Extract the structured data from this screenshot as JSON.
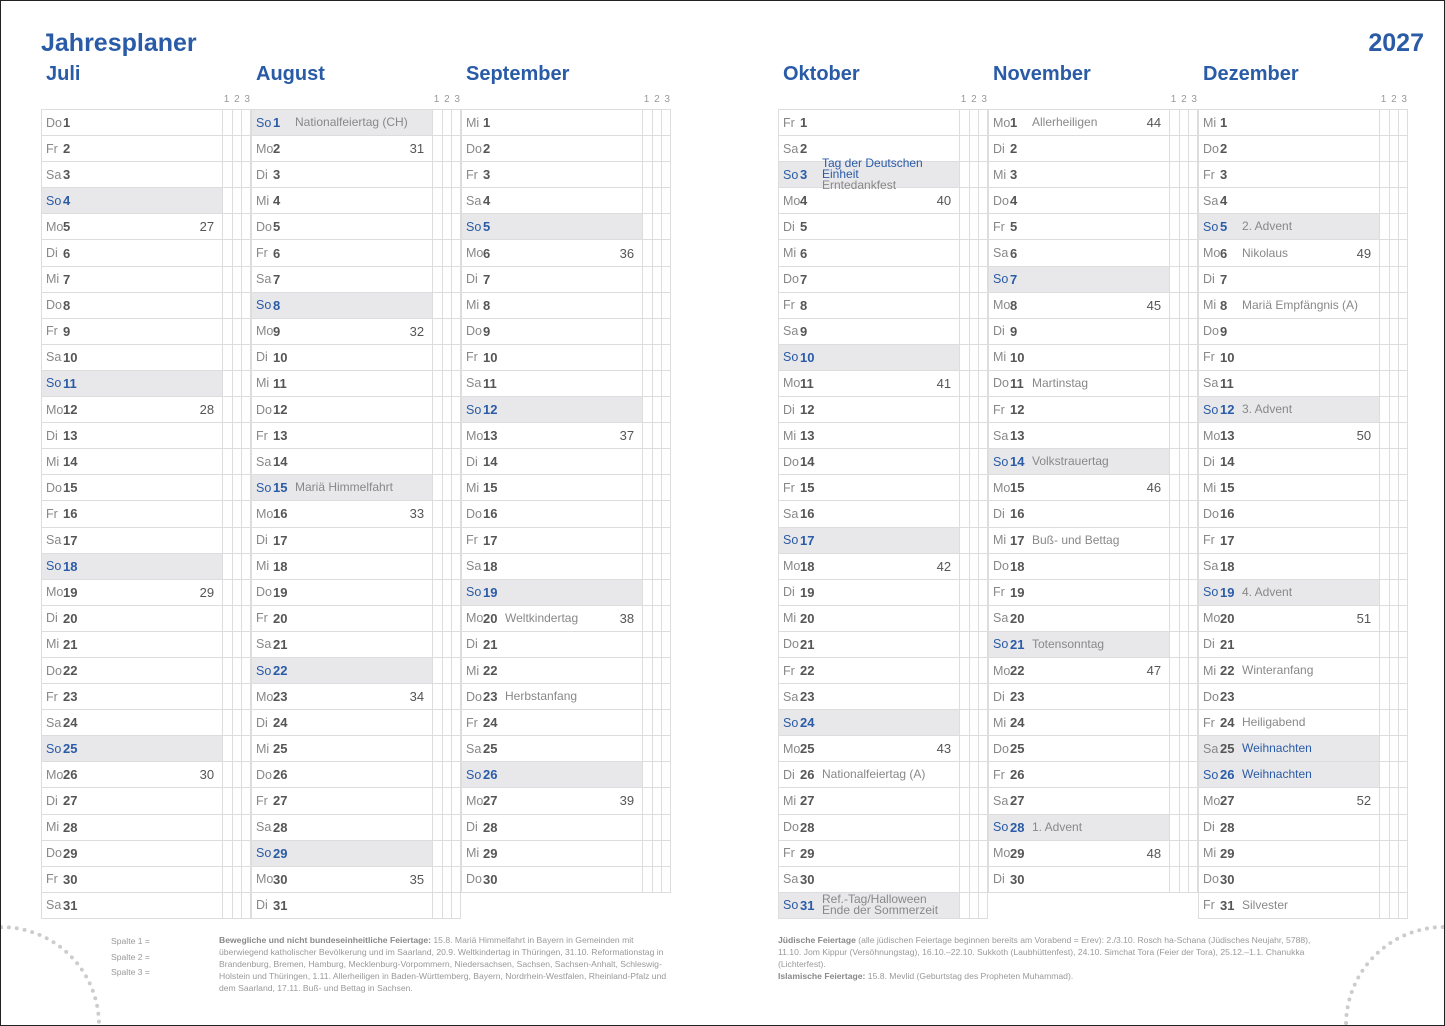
{
  "header": {
    "title": "Jahresplaner",
    "year": "2027",
    "subcols": "1 2 3"
  },
  "colors": {
    "accent": "#2a5ba6",
    "sunday_bg": "#e8e8eb"
  },
  "months": [
    {
      "name": "Juli",
      "rows": [
        [
          "Do",
          "1"
        ],
        [
          "Fr",
          "2"
        ],
        [
          "Sa",
          "3"
        ],
        [
          "So",
          "4"
        ],
        [
          "Mo",
          "5",
          "",
          "27"
        ],
        [
          "Di",
          "6"
        ],
        [
          "Mi",
          "7"
        ],
        [
          "Do",
          "8"
        ],
        [
          "Fr",
          "9"
        ],
        [
          "Sa",
          "10"
        ],
        [
          "So",
          "11"
        ],
        [
          "Mo",
          "12",
          "",
          "28"
        ],
        [
          "Di",
          "13"
        ],
        [
          "Mi",
          "14"
        ],
        [
          "Do",
          "15"
        ],
        [
          "Fr",
          "16"
        ],
        [
          "Sa",
          "17"
        ],
        [
          "So",
          "18"
        ],
        [
          "Mo",
          "19",
          "",
          "29"
        ],
        [
          "Di",
          "20"
        ],
        [
          "Mi",
          "21"
        ],
        [
          "Do",
          "22"
        ],
        [
          "Fr",
          "23"
        ],
        [
          "Sa",
          "24"
        ],
        [
          "So",
          "25"
        ],
        [
          "Mo",
          "26",
          "",
          "30"
        ],
        [
          "Di",
          "27"
        ],
        [
          "Mi",
          "28"
        ],
        [
          "Do",
          "29"
        ],
        [
          "Fr",
          "30"
        ],
        [
          "Sa",
          "31"
        ]
      ]
    },
    {
      "name": "August",
      "rows": [
        [
          "So",
          "1",
          "Nationalfeiertag (CH)"
        ],
        [
          "Mo",
          "2",
          "",
          "31"
        ],
        [
          "Di",
          "3"
        ],
        [
          "Mi",
          "4"
        ],
        [
          "Do",
          "5"
        ],
        [
          "Fr",
          "6"
        ],
        [
          "Sa",
          "7"
        ],
        [
          "So",
          "8"
        ],
        [
          "Mo",
          "9",
          "",
          "32"
        ],
        [
          "Di",
          "10"
        ],
        [
          "Mi",
          "11"
        ],
        [
          "Do",
          "12"
        ],
        [
          "Fr",
          "13"
        ],
        [
          "Sa",
          "14"
        ],
        [
          "So",
          "15",
          "Mariä Himmelfahrt"
        ],
        [
          "Mo",
          "16",
          "",
          "33"
        ],
        [
          "Di",
          "17"
        ],
        [
          "Mi",
          "18"
        ],
        [
          "Do",
          "19"
        ],
        [
          "Fr",
          "20"
        ],
        [
          "Sa",
          "21"
        ],
        [
          "So",
          "22"
        ],
        [
          "Mo",
          "23",
          "",
          "34"
        ],
        [
          "Di",
          "24"
        ],
        [
          "Mi",
          "25"
        ],
        [
          "Do",
          "26"
        ],
        [
          "Fr",
          "27"
        ],
        [
          "Sa",
          "28"
        ],
        [
          "So",
          "29"
        ],
        [
          "Mo",
          "30",
          "",
          "35"
        ],
        [
          "Di",
          "31"
        ]
      ]
    },
    {
      "name": "September",
      "rows": [
        [
          "Mi",
          "1"
        ],
        [
          "Do",
          "2"
        ],
        [
          "Fr",
          "3"
        ],
        [
          "Sa",
          "4"
        ],
        [
          "So",
          "5"
        ],
        [
          "Mo",
          "6",
          "",
          "36"
        ],
        [
          "Di",
          "7"
        ],
        [
          "Mi",
          "8"
        ],
        [
          "Do",
          "9"
        ],
        [
          "Fr",
          "10"
        ],
        [
          "Sa",
          "11"
        ],
        [
          "So",
          "12"
        ],
        [
          "Mo",
          "13",
          "",
          "37"
        ],
        [
          "Di",
          "14"
        ],
        [
          "Mi",
          "15"
        ],
        [
          "Do",
          "16"
        ],
        [
          "Fr",
          "17"
        ],
        [
          "Sa",
          "18"
        ],
        [
          "So",
          "19"
        ],
        [
          "Mo",
          "20",
          "Weltkindertag",
          "38"
        ],
        [
          "Di",
          "21"
        ],
        [
          "Mi",
          "22"
        ],
        [
          "Do",
          "23",
          "Herbstanfang"
        ],
        [
          "Fr",
          "24"
        ],
        [
          "Sa",
          "25"
        ],
        [
          "So",
          "26"
        ],
        [
          "Mo",
          "27",
          "",
          "39"
        ],
        [
          "Di",
          "28"
        ],
        [
          "Mi",
          "29"
        ],
        [
          "Do",
          "30"
        ]
      ]
    },
    {
      "name": "Oktober",
      "rows": [
        [
          "Fr",
          "1"
        ],
        [
          "Sa",
          "2"
        ],
        [
          "So",
          "3",
          "Tag der Deutschen Einheit",
          "",
          "Erntedankfest",
          true
        ],
        [
          "Mo",
          "4",
          "",
          "40"
        ],
        [
          "Di",
          "5"
        ],
        [
          "Mi",
          "6"
        ],
        [
          "Do",
          "7"
        ],
        [
          "Fr",
          "8"
        ],
        [
          "Sa",
          "9"
        ],
        [
          "So",
          "10"
        ],
        [
          "Mo",
          "11",
          "",
          "41"
        ],
        [
          "Di",
          "12"
        ],
        [
          "Mi",
          "13"
        ],
        [
          "Do",
          "14"
        ],
        [
          "Fr",
          "15"
        ],
        [
          "Sa",
          "16"
        ],
        [
          "So",
          "17"
        ],
        [
          "Mo",
          "18",
          "",
          "42"
        ],
        [
          "Di",
          "19"
        ],
        [
          "Mi",
          "20"
        ],
        [
          "Do",
          "21"
        ],
        [
          "Fr",
          "22"
        ],
        [
          "Sa",
          "23"
        ],
        [
          "So",
          "24"
        ],
        [
          "Mo",
          "25",
          "",
          "43"
        ],
        [
          "Di",
          "26",
          "Nationalfeiertag (A)"
        ],
        [
          "Mi",
          "27"
        ],
        [
          "Do",
          "28"
        ],
        [
          "Fr",
          "29"
        ],
        [
          "Sa",
          "30"
        ],
        [
          "So",
          "31",
          "Ref.-Tag/Halloween",
          "",
          "Ende der Sommerzeit"
        ]
      ]
    },
    {
      "name": "November",
      "rows": [
        [
          "Mo",
          "1",
          "Allerheiligen",
          "44"
        ],
        [
          "Di",
          "2"
        ],
        [
          "Mi",
          "3"
        ],
        [
          "Do",
          "4"
        ],
        [
          "Fr",
          "5"
        ],
        [
          "Sa",
          "6"
        ],
        [
          "So",
          "7"
        ],
        [
          "Mo",
          "8",
          "",
          "45"
        ],
        [
          "Di",
          "9"
        ],
        [
          "Mi",
          "10"
        ],
        [
          "Do",
          "11",
          "Martinstag"
        ],
        [
          "Fr",
          "12"
        ],
        [
          "Sa",
          "13"
        ],
        [
          "So",
          "14",
          "Volkstrauertag"
        ],
        [
          "Mo",
          "15",
          "",
          "46"
        ],
        [
          "Di",
          "16"
        ],
        [
          "Mi",
          "17",
          "Buß- und Bettag"
        ],
        [
          "Do",
          "18"
        ],
        [
          "Fr",
          "19"
        ],
        [
          "Sa",
          "20"
        ],
        [
          "So",
          "21",
          "Totensonntag"
        ],
        [
          "Mo",
          "22",
          "",
          "47"
        ],
        [
          "Di",
          "23"
        ],
        [
          "Mi",
          "24"
        ],
        [
          "Do",
          "25"
        ],
        [
          "Fr",
          "26"
        ],
        [
          "Sa",
          "27"
        ],
        [
          "So",
          "28",
          "1. Advent"
        ],
        [
          "Mo",
          "29",
          "",
          "48"
        ],
        [
          "Di",
          "30"
        ]
      ]
    },
    {
      "name": "Dezember",
      "rows": [
        [
          "Mi",
          "1"
        ],
        [
          "Do",
          "2"
        ],
        [
          "Fr",
          "3"
        ],
        [
          "Sa",
          "4"
        ],
        [
          "So",
          "5",
          "2. Advent"
        ],
        [
          "Mo",
          "6",
          "Nikolaus",
          "49"
        ],
        [
          "Di",
          "7"
        ],
        [
          "Mi",
          "8",
          "Mariä Empfängnis (A)"
        ],
        [
          "Do",
          "9"
        ],
        [
          "Fr",
          "10"
        ],
        [
          "Sa",
          "11"
        ],
        [
          "So",
          "12",
          "3. Advent"
        ],
        [
          "Mo",
          "13",
          "",
          "50"
        ],
        [
          "Di",
          "14"
        ],
        [
          "Mi",
          "15"
        ],
        [
          "Do",
          "16"
        ],
        [
          "Fr",
          "17"
        ],
        [
          "Sa",
          "18"
        ],
        [
          "So",
          "19",
          "4. Advent"
        ],
        [
          "Mo",
          "20",
          "",
          "51"
        ],
        [
          "Di",
          "21"
        ],
        [
          "Mi",
          "22",
          "Winteranfang"
        ],
        [
          "Do",
          "23"
        ],
        [
          "Fr",
          "24",
          "Heiligabend"
        ],
        [
          "Sa",
          "25",
          "Weihnachten",
          "",
          "",
          true
        ],
        [
          "So",
          "26",
          "Weihnachten",
          "",
          "",
          true
        ],
        [
          "Mo",
          "27",
          "",
          "52"
        ],
        [
          "Di",
          "28"
        ],
        [
          "Mi",
          "29"
        ],
        [
          "Do",
          "30"
        ],
        [
          "Fr",
          "31",
          "Silvester"
        ]
      ]
    }
  ],
  "footer": {
    "spalten": [
      "Spalte  1 =",
      "Spalte  2 =",
      "Spalte  3 ="
    ],
    "left_bold": "Bewegliche und nicht bundeseinheitliche Feiertage:",
    "left_text": " 15.8. Mariä Himmelfahrt in Bayern in Gemeinden mit überwiegend katholischer Bevölkerung und im Saarland, 20.9. Weltkindertag in Thüringen, 31.10. Reformationstag in Brandenburg, Bremen, Hamburg, Mecklenburg-Vorpommern, Niedersachsen, Sachsen, Sachsen-Anhalt, Schleswig-Holstein und Thüringen, 1.11. Allerheiligen in Baden-Württemberg, Bayern, Nordrhein-Westfalen, Rheinland-Pfalz und dem Saarland, 17.11. Buß- und Bettag in Sachsen.",
    "jewish_bold": "Jüdische Feiertage",
    "jewish_text": " (alle jüdischen Feiertage beginnen bereits am Vorabend = Erev): 2./3.10. Rosch ha-Schana (Jüdisches Neujahr, 5788), 11.10. Jom Kippur (Versöhnungstag), 16.10.–22.10. Sukkoth (Laubhüttenfest), 24.10. Simchat Tora (Feier der Tora), 25.12.–1.1. Chanukka (Lichterfest).",
    "islam_bold": "Islamische Feiertage:",
    "islam_text": " 15.8. Mevlid (Geburtstag des Propheten Muhammad)."
  }
}
